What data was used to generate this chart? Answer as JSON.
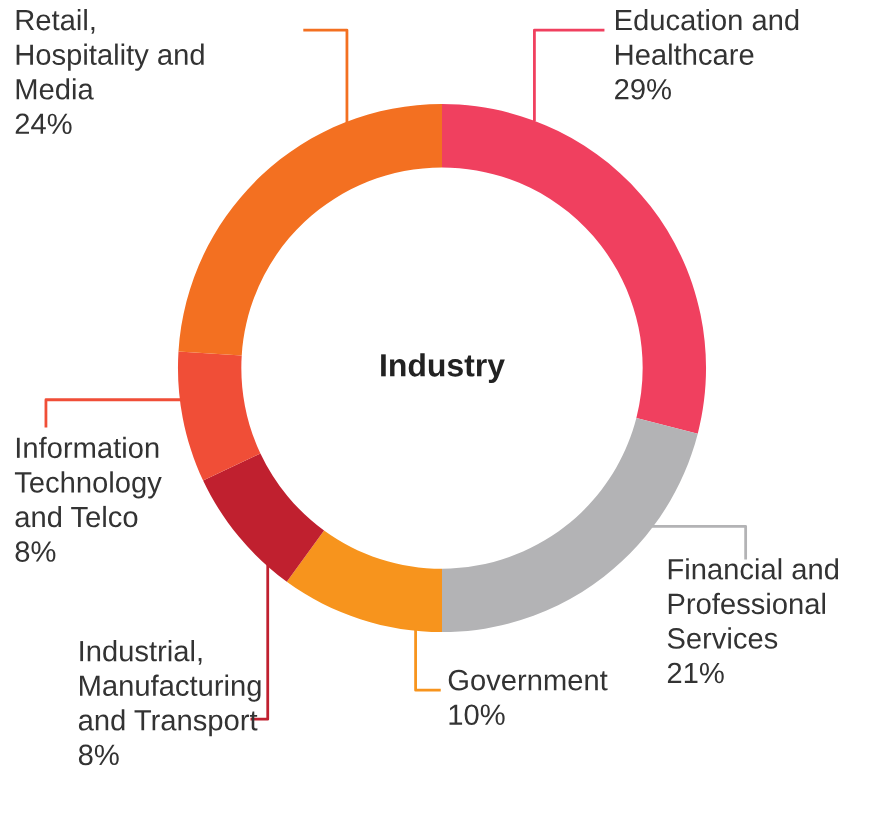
{
  "chart_data": {
    "type": "donut",
    "title": "Industry",
    "categories": [
      "Education and Healthcare",
      "Financial and Professional Services",
      "Government",
      "Industrial, Manufacturing and Transport",
      "Information Technology and Telco",
      "Retail, Hospitality and Media"
    ],
    "values": [
      29,
      21,
      10,
      8,
      8,
      24
    ],
    "value_labels": [
      "29%",
      "21%",
      "10%",
      "8%",
      "8%",
      "24%"
    ],
    "colors": [
      "#f0405f",
      "#b3b3b5",
      "#f7941d",
      "#c0202f",
      "#f04e37",
      "#f37021"
    ]
  }
}
